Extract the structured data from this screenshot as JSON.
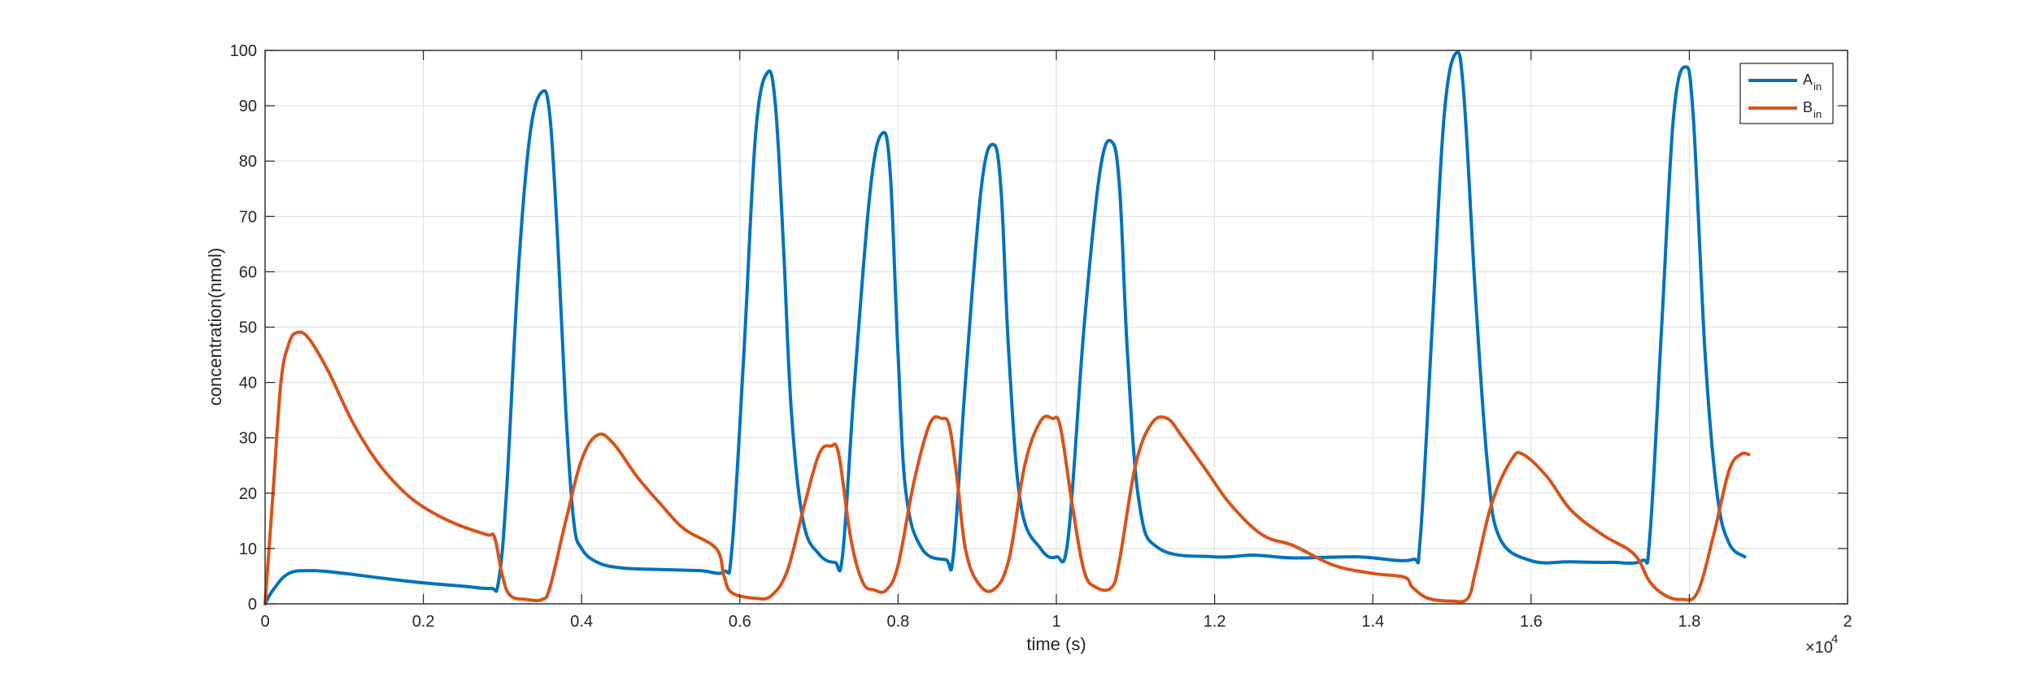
{
  "chart_data": {
    "type": "line",
    "title": "",
    "xlabel": "time (s)",
    "ylabel": "concentration(nmol)",
    "x_multiplier_label": {
      "base": "×10",
      "exp": "4"
    },
    "xlim": [
      0,
      2
    ],
    "ylim": [
      0,
      100
    ],
    "xticks": [
      0,
      0.2,
      0.4,
      0.6,
      0.8,
      1,
      1.2,
      1.4,
      1.6,
      1.8,
      2
    ],
    "xtick_labels": [
      "0",
      "0.2",
      "0.4",
      "0.6",
      "0.8",
      "1",
      "1.2",
      "1.4",
      "1.6",
      "1.8",
      "2"
    ],
    "yticks": [
      0,
      10,
      20,
      30,
      40,
      50,
      60,
      70,
      80,
      90,
      100
    ],
    "ytick_labels": [
      "0",
      "10",
      "20",
      "30",
      "40",
      "50",
      "60",
      "70",
      "80",
      "90",
      "100"
    ],
    "grid": true,
    "legend_position": "top-right",
    "series": [
      {
        "name": "A",
        "name_sub": "in",
        "color": "#0072BD",
        "points": [
          [
            0,
            0
          ],
          [
            0.01,
            2.5
          ],
          [
            0.03,
            5.5
          ],
          [
            0.06,
            6
          ],
          [
            0.1,
            5.5
          ],
          [
            0.15,
            4.6
          ],
          [
            0.2,
            3.8
          ],
          [
            0.25,
            3.2
          ],
          [
            0.285,
            2.8
          ],
          [
            0.295,
            4
          ],
          [
            0.305,
            20
          ],
          [
            0.32,
            60
          ],
          [
            0.335,
            85
          ],
          [
            0.35,
            92.5
          ],
          [
            0.36,
            88
          ],
          [
            0.37,
            65
          ],
          [
            0.38,
            35
          ],
          [
            0.39,
            15
          ],
          [
            0.4,
            10
          ],
          [
            0.42,
            7.5
          ],
          [
            0.45,
            6.5
          ],
          [
            0.5,
            6.2
          ],
          [
            0.55,
            6
          ],
          [
            0.58,
            5.8
          ],
          [
            0.59,
            10
          ],
          [
            0.605,
            45
          ],
          [
            0.62,
            85
          ],
          [
            0.635,
            96
          ],
          [
            0.645,
            90
          ],
          [
            0.655,
            65
          ],
          [
            0.665,
            35
          ],
          [
            0.68,
            15
          ],
          [
            0.7,
            9
          ],
          [
            0.72,
            7.5
          ],
          [
            0.73,
            9
          ],
          [
            0.745,
            40
          ],
          [
            0.765,
            75
          ],
          [
            0.78,
            85
          ],
          [
            0.79,
            78
          ],
          [
            0.8,
            45
          ],
          [
            0.81,
            20
          ],
          [
            0.83,
            10
          ],
          [
            0.86,
            8
          ],
          [
            0.87,
            9
          ],
          [
            0.885,
            40
          ],
          [
            0.905,
            75
          ],
          [
            0.92,
            83
          ],
          [
            0.93,
            75
          ],
          [
            0.94,
            45
          ],
          [
            0.955,
            18
          ],
          [
            0.98,
            10
          ],
          [
            1.0,
            8.5
          ],
          [
            1.015,
            12
          ],
          [
            1.035,
            50
          ],
          [
            1.055,
            78
          ],
          [
            1.07,
            83.5
          ],
          [
            1.08,
            75
          ],
          [
            1.09,
            45
          ],
          [
            1.105,
            18
          ],
          [
            1.13,
            10
          ],
          [
            1.2,
            8.5
          ],
          [
            1.25,
            8.8
          ],
          [
            1.3,
            8.3
          ],
          [
            1.38,
            8.5
          ],
          [
            1.45,
            8
          ],
          [
            1.46,
            12
          ],
          [
            1.475,
            50
          ],
          [
            1.49,
            88
          ],
          [
            1.505,
            99.5
          ],
          [
            1.515,
            92
          ],
          [
            1.53,
            55
          ],
          [
            1.545,
            25
          ],
          [
            1.56,
            12
          ],
          [
            1.6,
            7.8
          ],
          [
            1.65,
            7.6
          ],
          [
            1.7,
            7.5
          ],
          [
            1.74,
            7.8
          ],
          [
            1.75,
            12
          ],
          [
            1.765,
            50
          ],
          [
            1.78,
            88
          ],
          [
            1.795,
            97
          ],
          [
            1.805,
            88
          ],
          [
            1.82,
            45
          ],
          [
            1.835,
            20
          ],
          [
            1.85,
            11
          ],
          [
            1.87,
            8.5
          ]
        ]
      },
      {
        "name": "B",
        "name_sub": "in",
        "color": "#D95319",
        "points": [
          [
            0,
            0
          ],
          [
            0.01,
            20
          ],
          [
            0.02,
            40
          ],
          [
            0.03,
            47
          ],
          [
            0.04,
            49
          ],
          [
            0.055,
            48
          ],
          [
            0.08,
            42
          ],
          [
            0.11,
            33
          ],
          [
            0.14,
            26
          ],
          [
            0.17,
            21
          ],
          [
            0.2,
            17.5
          ],
          [
            0.24,
            14.5
          ],
          [
            0.28,
            12.5
          ],
          [
            0.29,
            12
          ],
          [
            0.3,
            5
          ],
          [
            0.31,
            1.5
          ],
          [
            0.33,
            0.8
          ],
          [
            0.35,
            0.8
          ],
          [
            0.36,
            3
          ],
          [
            0.38,
            15
          ],
          [
            0.4,
            26
          ],
          [
            0.42,
            30.5
          ],
          [
            0.44,
            29
          ],
          [
            0.47,
            23
          ],
          [
            0.5,
            18
          ],
          [
            0.53,
            13.5
          ],
          [
            0.57,
            10
          ],
          [
            0.58,
            5
          ],
          [
            0.59,
            2
          ],
          [
            0.62,
            1
          ],
          [
            0.64,
            1.5
          ],
          [
            0.66,
            6
          ],
          [
            0.68,
            17
          ],
          [
            0.7,
            27
          ],
          [
            0.715,
            28.5
          ],
          [
            0.725,
            27
          ],
          [
            0.74,
            12
          ],
          [
            0.755,
            4
          ],
          [
            0.77,
            2.5
          ],
          [
            0.785,
            2.5
          ],
          [
            0.8,
            7
          ],
          [
            0.82,
            22
          ],
          [
            0.84,
            32.5
          ],
          [
            0.855,
            33.5
          ],
          [
            0.865,
            32
          ],
          [
            0.875,
            22
          ],
          [
            0.885,
            10
          ],
          [
            0.9,
            4
          ],
          [
            0.92,
            2.5
          ],
          [
            0.94,
            8
          ],
          [
            0.96,
            25
          ],
          [
            0.98,
            33
          ],
          [
            0.995,
            33.5
          ],
          [
            1.005,
            32
          ],
          [
            1.02,
            18
          ],
          [
            1.035,
            6
          ],
          [
            1.05,
            3
          ],
          [
            1.07,
            3
          ],
          [
            1.08,
            8
          ],
          [
            1.1,
            25
          ],
          [
            1.12,
            32.5
          ],
          [
            1.14,
            33.5
          ],
          [
            1.16,
            30
          ],
          [
            1.19,
            24
          ],
          [
            1.22,
            18
          ],
          [
            1.26,
            12.5
          ],
          [
            1.3,
            10.5
          ],
          [
            1.35,
            7
          ],
          [
            1.4,
            5.5
          ],
          [
            1.44,
            4.8
          ],
          [
            1.45,
            3
          ],
          [
            1.47,
            1
          ],
          [
            1.5,
            0.5
          ],
          [
            1.52,
            1
          ],
          [
            1.53,
            6
          ],
          [
            1.55,
            18
          ],
          [
            1.575,
            26
          ],
          [
            1.59,
            27
          ],
          [
            1.62,
            23
          ],
          [
            1.65,
            17
          ],
          [
            1.69,
            12.5
          ],
          [
            1.73,
            9
          ],
          [
            1.75,
            4
          ],
          [
            1.77,
            1.5
          ],
          [
            1.79,
            0.8
          ],
          [
            1.81,
            2
          ],
          [
            1.83,
            12
          ],
          [
            1.85,
            24
          ],
          [
            1.865,
            27
          ],
          [
            1.875,
            27
          ]
        ]
      }
    ]
  }
}
